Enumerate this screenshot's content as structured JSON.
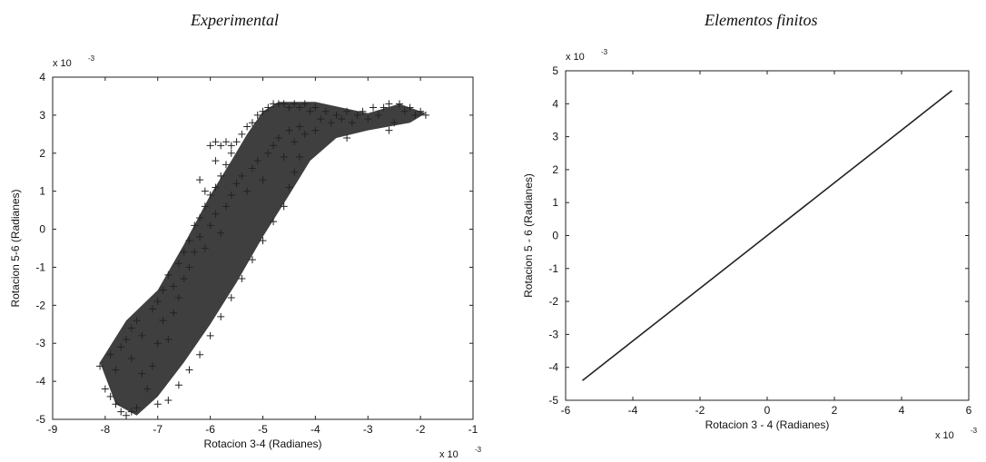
{
  "chart_data": [
    {
      "type": "scatter",
      "title": "Experimental",
      "xlabel": "Rotacion 3-4 (Radianes)",
      "ylabel": "Rotacion 5-6 (Radianes)",
      "x_multiplier": "x 10",
      "y_multiplier": "x 10",
      "exponent": "-3",
      "xlim": [
        -9,
        -1
      ],
      "ylim": [
        -5,
        4
      ],
      "xticks": [
        -9,
        -8,
        -7,
        -6,
        -5,
        -4,
        -3,
        -2,
        -1
      ],
      "yticks": [
        -5,
        -4,
        -3,
        -2,
        -1,
        0,
        1,
        2,
        3,
        4
      ],
      "marker": "+",
      "grid": false,
      "color": "#222222",
      "points": [
        [
          -8.1,
          -3.6
        ],
        [
          -8.0,
          -4.2
        ],
        [
          -7.9,
          -4.4
        ],
        [
          -7.8,
          -4.6
        ],
        [
          -7.7,
          -4.8
        ],
        [
          -7.6,
          -4.9
        ],
        [
          -7.5,
          -4.8
        ],
        [
          -7.4,
          -4.7
        ],
        [
          -7.9,
          -3.3
        ],
        [
          -7.8,
          -3.7
        ],
        [
          -7.7,
          -3.1
        ],
        [
          -7.6,
          -2.9
        ],
        [
          -7.5,
          -3.4
        ],
        [
          -7.5,
          -2.6
        ],
        [
          -7.4,
          -2.4
        ],
        [
          -7.3,
          -2.8
        ],
        [
          -7.3,
          -3.8
        ],
        [
          -7.2,
          -4.2
        ],
        [
          -7.1,
          -3.6
        ],
        [
          -7.0,
          -3.0
        ],
        [
          -7.1,
          -2.1
        ],
        [
          -7.0,
          -1.9
        ],
        [
          -6.9,
          -2.4
        ],
        [
          -6.9,
          -1.6
        ],
        [
          -6.8,
          -2.9
        ],
        [
          -6.8,
          -1.2
        ],
        [
          -6.7,
          -1.5
        ],
        [
          -6.7,
          -2.2
        ],
        [
          -6.6,
          -1.8
        ],
        [
          -6.6,
          -0.9
        ],
        [
          -6.5,
          -0.6
        ],
        [
          -6.5,
          -1.3
        ],
        [
          -6.4,
          -0.3
        ],
        [
          -6.4,
          -1.0
        ],
        [
          -6.3,
          -0.6
        ],
        [
          -6.3,
          0.1
        ],
        [
          -6.2,
          0.3
        ],
        [
          -6.2,
          -0.2
        ],
        [
          -6.1,
          0.6
        ],
        [
          -6.1,
          -0.5
        ],
        [
          -6.0,
          0.9
        ],
        [
          -6.0,
          0.1
        ],
        [
          -5.9,
          1.1
        ],
        [
          -5.9,
          0.4
        ],
        [
          -5.8,
          1.4
        ],
        [
          -5.8,
          -0.1
        ],
        [
          -5.7,
          1.7
        ],
        [
          -5.7,
          0.6
        ],
        [
          -5.6,
          2.0
        ],
        [
          -5.6,
          0.9
        ],
        [
          -5.5,
          2.3
        ],
        [
          -5.5,
          1.2
        ],
        [
          -5.4,
          2.5
        ],
        [
          -5.4,
          1.4
        ],
        [
          -5.3,
          2.7
        ],
        [
          -5.3,
          1.0
        ],
        [
          -5.2,
          2.8
        ],
        [
          -5.2,
          1.6
        ],
        [
          -5.1,
          3.0
        ],
        [
          -5.1,
          1.8
        ],
        [
          -5.0,
          3.1
        ],
        [
          -5.0,
          1.3
        ],
        [
          -4.9,
          3.2
        ],
        [
          -4.9,
          2.0
        ],
        [
          -4.8,
          3.3
        ],
        [
          -4.8,
          2.2
        ],
        [
          -4.7,
          3.3
        ],
        [
          -4.7,
          2.4
        ],
        [
          -4.6,
          3.3
        ],
        [
          -4.6,
          1.9
        ],
        [
          -4.5,
          3.2
        ],
        [
          -4.5,
          2.6
        ],
        [
          -4.4,
          3.3
        ],
        [
          -4.4,
          2.3
        ],
        [
          -4.3,
          3.2
        ],
        [
          -4.3,
          2.7
        ],
        [
          -4.2,
          3.3
        ],
        [
          -4.2,
          2.5
        ],
        [
          -4.1,
          3.1
        ],
        [
          -4.0,
          3.2
        ],
        [
          -4.0,
          2.6
        ],
        [
          -3.9,
          2.9
        ],
        [
          -3.8,
          3.1
        ],
        [
          -3.7,
          2.8
        ],
        [
          -3.6,
          3.0
        ],
        [
          -3.5,
          2.9
        ],
        [
          -3.4,
          3.1
        ],
        [
          -3.3,
          2.8
        ],
        [
          -3.2,
          3.0
        ],
        [
          -3.1,
          3.1
        ],
        [
          -3.0,
          2.9
        ],
        [
          -2.9,
          3.2
        ],
        [
          -2.8,
          3.0
        ],
        [
          -2.7,
          3.2
        ],
        [
          -2.6,
          3.3
        ],
        [
          -2.5,
          2.8
        ],
        [
          -2.4,
          3.3
        ],
        [
          -2.3,
          3.1
        ],
        [
          -2.2,
          3.2
        ],
        [
          -2.1,
          3.0
        ],
        [
          -2.0,
          3.1
        ],
        [
          -1.9,
          3.0
        ],
        [
          -2.6,
          2.6
        ],
        [
          -3.4,
          2.4
        ],
        [
          -6.0,
          2.2
        ],
        [
          -5.9,
          2.3
        ],
        [
          -5.8,
          2.2
        ],
        [
          -5.7,
          2.3
        ],
        [
          -5.6,
          2.2
        ],
        [
          -6.1,
          1.0
        ],
        [
          -6.2,
          1.3
        ],
        [
          -5.9,
          1.8
        ],
        [
          -4.6,
          0.6
        ],
        [
          -4.5,
          1.1
        ],
        [
          -4.4,
          1.5
        ],
        [
          -4.3,
          1.9
        ],
        [
          -4.8,
          0.2
        ],
        [
          -5.0,
          -0.3
        ],
        [
          -5.2,
          -0.8
        ],
        [
          -5.4,
          -1.3
        ],
        [
          -5.6,
          -1.8
        ],
        [
          -5.8,
          -2.3
        ],
        [
          -6.0,
          -2.8
        ],
        [
          -6.2,
          -3.3
        ],
        [
          -6.4,
          -3.7
        ],
        [
          -6.6,
          -4.1
        ],
        [
          -6.8,
          -4.5
        ],
        [
          -7.0,
          -4.6
        ]
      ]
    },
    {
      "type": "line",
      "title": "Elementos finitos",
      "xlabel": "Rotacion 3 - 4 (Radianes)",
      "ylabel": "Rotacion 5 - 6 (Radianes)",
      "x_multiplier": "x 10",
      "y_multiplier": "x 10",
      "exponent": "-3",
      "xlim": [
        -6,
        6
      ],
      "ylim": [
        -5,
        5
      ],
      "xticks": [
        -6,
        -4,
        -2,
        0,
        2,
        4,
        6
      ],
      "yticks": [
        -5,
        -4,
        -3,
        -2,
        -1,
        0,
        1,
        2,
        3,
        4,
        5
      ],
      "grid": false,
      "color": "#222222",
      "x": [
        -5.5,
        -4,
        -2,
        0,
        2,
        4,
        5.5
      ],
      "y": [
        -4.4,
        -3.2,
        -1.6,
        0,
        1.6,
        3.2,
        4.4
      ]
    }
  ]
}
